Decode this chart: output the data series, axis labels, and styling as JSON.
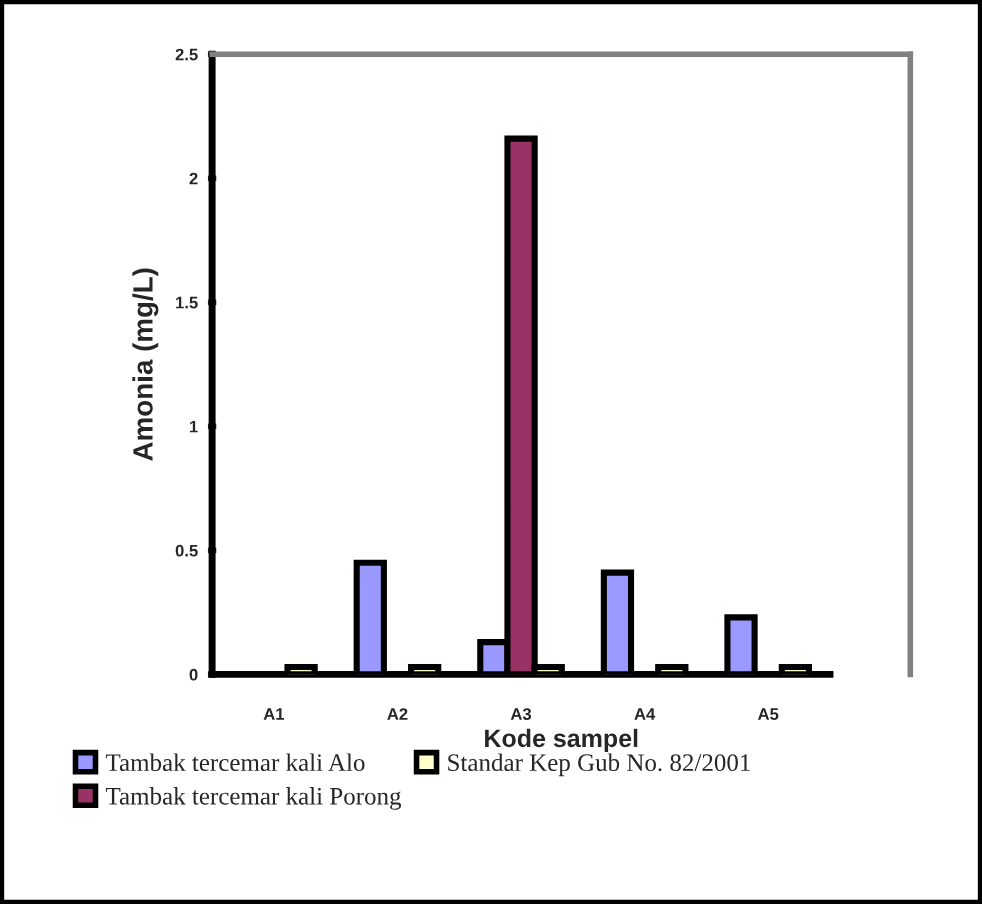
{
  "chart_data": {
    "type": "bar",
    "xlabel": "Kode sampel",
    "ylabel": "Amonia (mg/L)",
    "categories": [
      "A1",
      "A2",
      "A3",
      "A4",
      "A5"
    ],
    "series": [
      {
        "name": "Tambak tercemar kali Alo",
        "color": "#9999ff",
        "values": [
          null,
          0.45,
          0.13,
          0.41,
          0.23
        ]
      },
      {
        "name": "Tambak tercemar kali Porong",
        "color": "#993366",
        "values": [
          null,
          null,
          2.16,
          null,
          null
        ]
      },
      {
        "name": "Standar Kep Gub No. 82/2001",
        "color": "#ffffcc",
        "values": [
          0.03,
          0.03,
          0.03,
          0.03,
          0.03
        ]
      }
    ],
    "ylim": [
      0,
      2.5
    ],
    "yticks": [
      0,
      0.5,
      1,
      1.5,
      2,
      2.5
    ],
    "grid": false,
    "legend": "bottom"
  }
}
